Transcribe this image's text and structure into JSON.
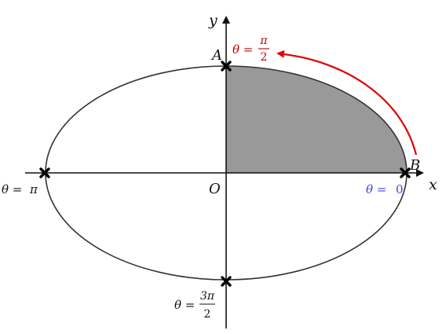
{
  "colors": {
    "background": "#ffffff",
    "curve": "#333333",
    "axes": "#111111",
    "shaded_region": "#999999",
    "arrow": "#e00000",
    "label_red": "#c00000",
    "label_blue": "#4040e0",
    "label_default": "#111111",
    "markers": "#000000"
  },
  "axes": {
    "x_label": "x",
    "y_label": "y",
    "origin_label": "O"
  },
  "points": {
    "A": {
      "label": "A"
    },
    "B": {
      "label": "B"
    }
  },
  "angles": {
    "zero": {
      "prefix": "θ = ",
      "value": "0"
    },
    "half_pi": {
      "prefix": "θ = ",
      "numerator": "π",
      "denominator": "2"
    },
    "pi": {
      "prefix": "θ = ",
      "value": "π"
    },
    "three_half_pi": {
      "prefix": "θ = ",
      "numerator": "3π",
      "denominator": "2"
    }
  },
  "icons": {
    "markers": "cross-marker-icon",
    "direction": "curved-arrow-icon"
  }
}
